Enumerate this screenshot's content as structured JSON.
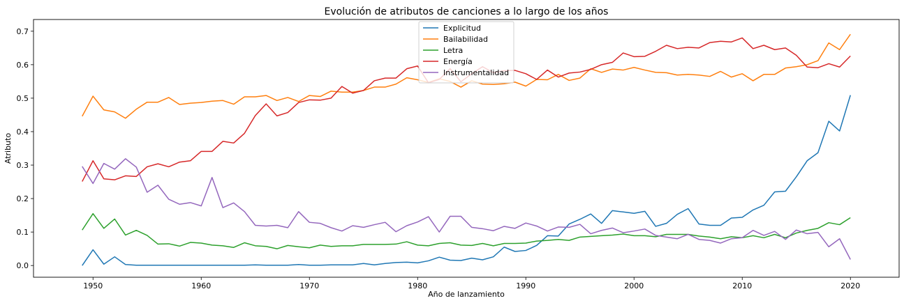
{
  "chart_data": {
    "type": "line",
    "title": "Evolución de atributos de canciones a lo largo de los años",
    "xlabel": "Año de lanzamiento",
    "ylabel": "Atributo",
    "xlim": [
      1944.5,
      2024.5
    ],
    "ylim": [
      -0.035,
      0.735
    ],
    "xticks": [
      1950,
      1960,
      1970,
      1980,
      1990,
      2000,
      2010,
      2020
    ],
    "yticks": [
      0.0,
      0.1,
      0.2,
      0.3,
      0.4,
      0.5,
      0.6,
      0.7
    ],
    "grid": false,
    "legend_position": "top-center",
    "x": [
      1949,
      1950,
      1951,
      1952,
      1953,
      1954,
      1955,
      1956,
      1957,
      1958,
      1959,
      1960,
      1961,
      1962,
      1963,
      1964,
      1965,
      1966,
      1967,
      1968,
      1969,
      1970,
      1971,
      1972,
      1973,
      1974,
      1975,
      1976,
      1977,
      1978,
      1979,
      1980,
      1981,
      1982,
      1983,
      1984,
      1985,
      1986,
      1987,
      1988,
      1989,
      1990,
      1991,
      1992,
      1993,
      1994,
      1995,
      1996,
      1997,
      1998,
      1999,
      2000,
      2001,
      2002,
      2003,
      2004,
      2005,
      2006,
      2007,
      2008,
      2009,
      2010,
      2011,
      2012,
      2013,
      2014,
      2015,
      2016,
      2017,
      2018,
      2019,
      2020
    ],
    "series": [
      {
        "name": "Explicitud",
        "color": "#1f77b4",
        "values": [
          0.0,
          0.047,
          0.004,
          0.026,
          0.003,
          0.001,
          0.001,
          0.001,
          0.001,
          0.001,
          0.001,
          0.001,
          0.001,
          0.001,
          0.001,
          0.001,
          0.002,
          0.001,
          0.001,
          0.001,
          0.003,
          0.001,
          0.001,
          0.002,
          0.002,
          0.002,
          0.006,
          0.002,
          0.006,
          0.009,
          0.01,
          0.008,
          0.014,
          0.025,
          0.016,
          0.015,
          0.022,
          0.017,
          0.026,
          0.055,
          0.042,
          0.045,
          0.06,
          0.089,
          0.088,
          0.124,
          0.138,
          0.154,
          0.126,
          0.164,
          0.16,
          0.156,
          0.162,
          0.117,
          0.126,
          0.153,
          0.17,
          0.124,
          0.12,
          0.12,
          0.142,
          0.144,
          0.166,
          0.18,
          0.22,
          0.222,
          0.265,
          0.313,
          0.337,
          0.431,
          0.402,
          0.509
        ]
      },
      {
        "name": "Bailabilidad",
        "color": "#ff7f0e",
        "values": [
          0.446,
          0.506,
          0.465,
          0.459,
          0.44,
          0.467,
          0.488,
          0.488,
          0.502,
          0.481,
          0.485,
          0.487,
          0.491,
          0.493,
          0.482,
          0.504,
          0.504,
          0.508,
          0.493,
          0.502,
          0.49,
          0.508,
          0.505,
          0.521,
          0.518,
          0.518,
          0.523,
          0.533,
          0.533,
          0.542,
          0.561,
          0.555,
          0.547,
          0.558,
          0.55,
          0.533,
          0.552,
          0.542,
          0.541,
          0.543,
          0.548,
          0.536,
          0.556,
          0.555,
          0.571,
          0.553,
          0.56,
          0.588,
          0.577,
          0.587,
          0.584,
          0.592,
          0.584,
          0.577,
          0.576,
          0.569,
          0.571,
          0.569,
          0.565,
          0.58,
          0.563,
          0.573,
          0.552,
          0.571,
          0.571,
          0.59,
          0.594,
          0.6,
          0.612,
          0.665,
          0.645,
          0.691
        ]
      },
      {
        "name": "Letra",
        "color": "#2ca02c",
        "values": [
          0.106,
          0.155,
          0.111,
          0.139,
          0.091,
          0.105,
          0.09,
          0.064,
          0.065,
          0.058,
          0.069,
          0.067,
          0.061,
          0.059,
          0.054,
          0.068,
          0.059,
          0.057,
          0.05,
          0.06,
          0.056,
          0.053,
          0.061,
          0.057,
          0.059,
          0.059,
          0.063,
          0.063,
          0.063,
          0.064,
          0.071,
          0.061,
          0.059,
          0.066,
          0.068,
          0.061,
          0.06,
          0.066,
          0.059,
          0.066,
          0.066,
          0.067,
          0.073,
          0.075,
          0.078,
          0.075,
          0.085,
          0.087,
          0.089,
          0.091,
          0.094,
          0.089,
          0.089,
          0.086,
          0.093,
          0.093,
          0.093,
          0.088,
          0.085,
          0.08,
          0.086,
          0.083,
          0.089,
          0.083,
          0.093,
          0.083,
          0.097,
          0.105,
          0.111,
          0.128,
          0.122,
          0.143
        ]
      },
      {
        "name": "Energía",
        "color": "#d62728",
        "values": [
          0.251,
          0.313,
          0.259,
          0.256,
          0.268,
          0.266,
          0.295,
          0.304,
          0.295,
          0.309,
          0.313,
          0.341,
          0.341,
          0.371,
          0.366,
          0.395,
          0.448,
          0.483,
          0.447,
          0.457,
          0.487,
          0.495,
          0.494,
          0.5,
          0.535,
          0.515,
          0.523,
          0.552,
          0.56,
          0.56,
          0.588,
          0.596,
          0.546,
          0.556,
          0.588,
          0.549,
          0.573,
          0.594,
          0.576,
          0.582,
          0.583,
          0.573,
          0.556,
          0.584,
          0.563,
          0.575,
          0.578,
          0.586,
          0.6,
          0.607,
          0.635,
          0.624,
          0.625,
          0.64,
          0.658,
          0.648,
          0.652,
          0.65,
          0.666,
          0.67,
          0.668,
          0.68,
          0.648,
          0.658,
          0.645,
          0.65,
          0.628,
          0.593,
          0.591,
          0.603,
          0.593,
          0.626
        ]
      },
      {
        "name": "Instrumentalidad",
        "color": "#9467bd",
        "values": [
          0.296,
          0.245,
          0.305,
          0.288,
          0.319,
          0.294,
          0.219,
          0.24,
          0.198,
          0.183,
          0.188,
          0.178,
          0.263,
          0.173,
          0.187,
          0.161,
          0.12,
          0.118,
          0.12,
          0.113,
          0.161,
          0.129,
          0.126,
          0.113,
          0.103,
          0.119,
          0.114,
          0.122,
          0.129,
          0.101,
          0.119,
          0.13,
          0.146,
          0.1,
          0.147,
          0.147,
          0.114,
          0.11,
          0.104,
          0.117,
          0.111,
          0.127,
          0.118,
          0.103,
          0.115,
          0.114,
          0.123,
          0.095,
          0.105,
          0.112,
          0.098,
          0.103,
          0.109,
          0.09,
          0.085,
          0.08,
          0.093,
          0.078,
          0.075,
          0.067,
          0.08,
          0.083,
          0.105,
          0.09,
          0.102,
          0.078,
          0.106,
          0.095,
          0.099,
          0.056,
          0.08,
          0.018
        ]
      }
    ]
  }
}
